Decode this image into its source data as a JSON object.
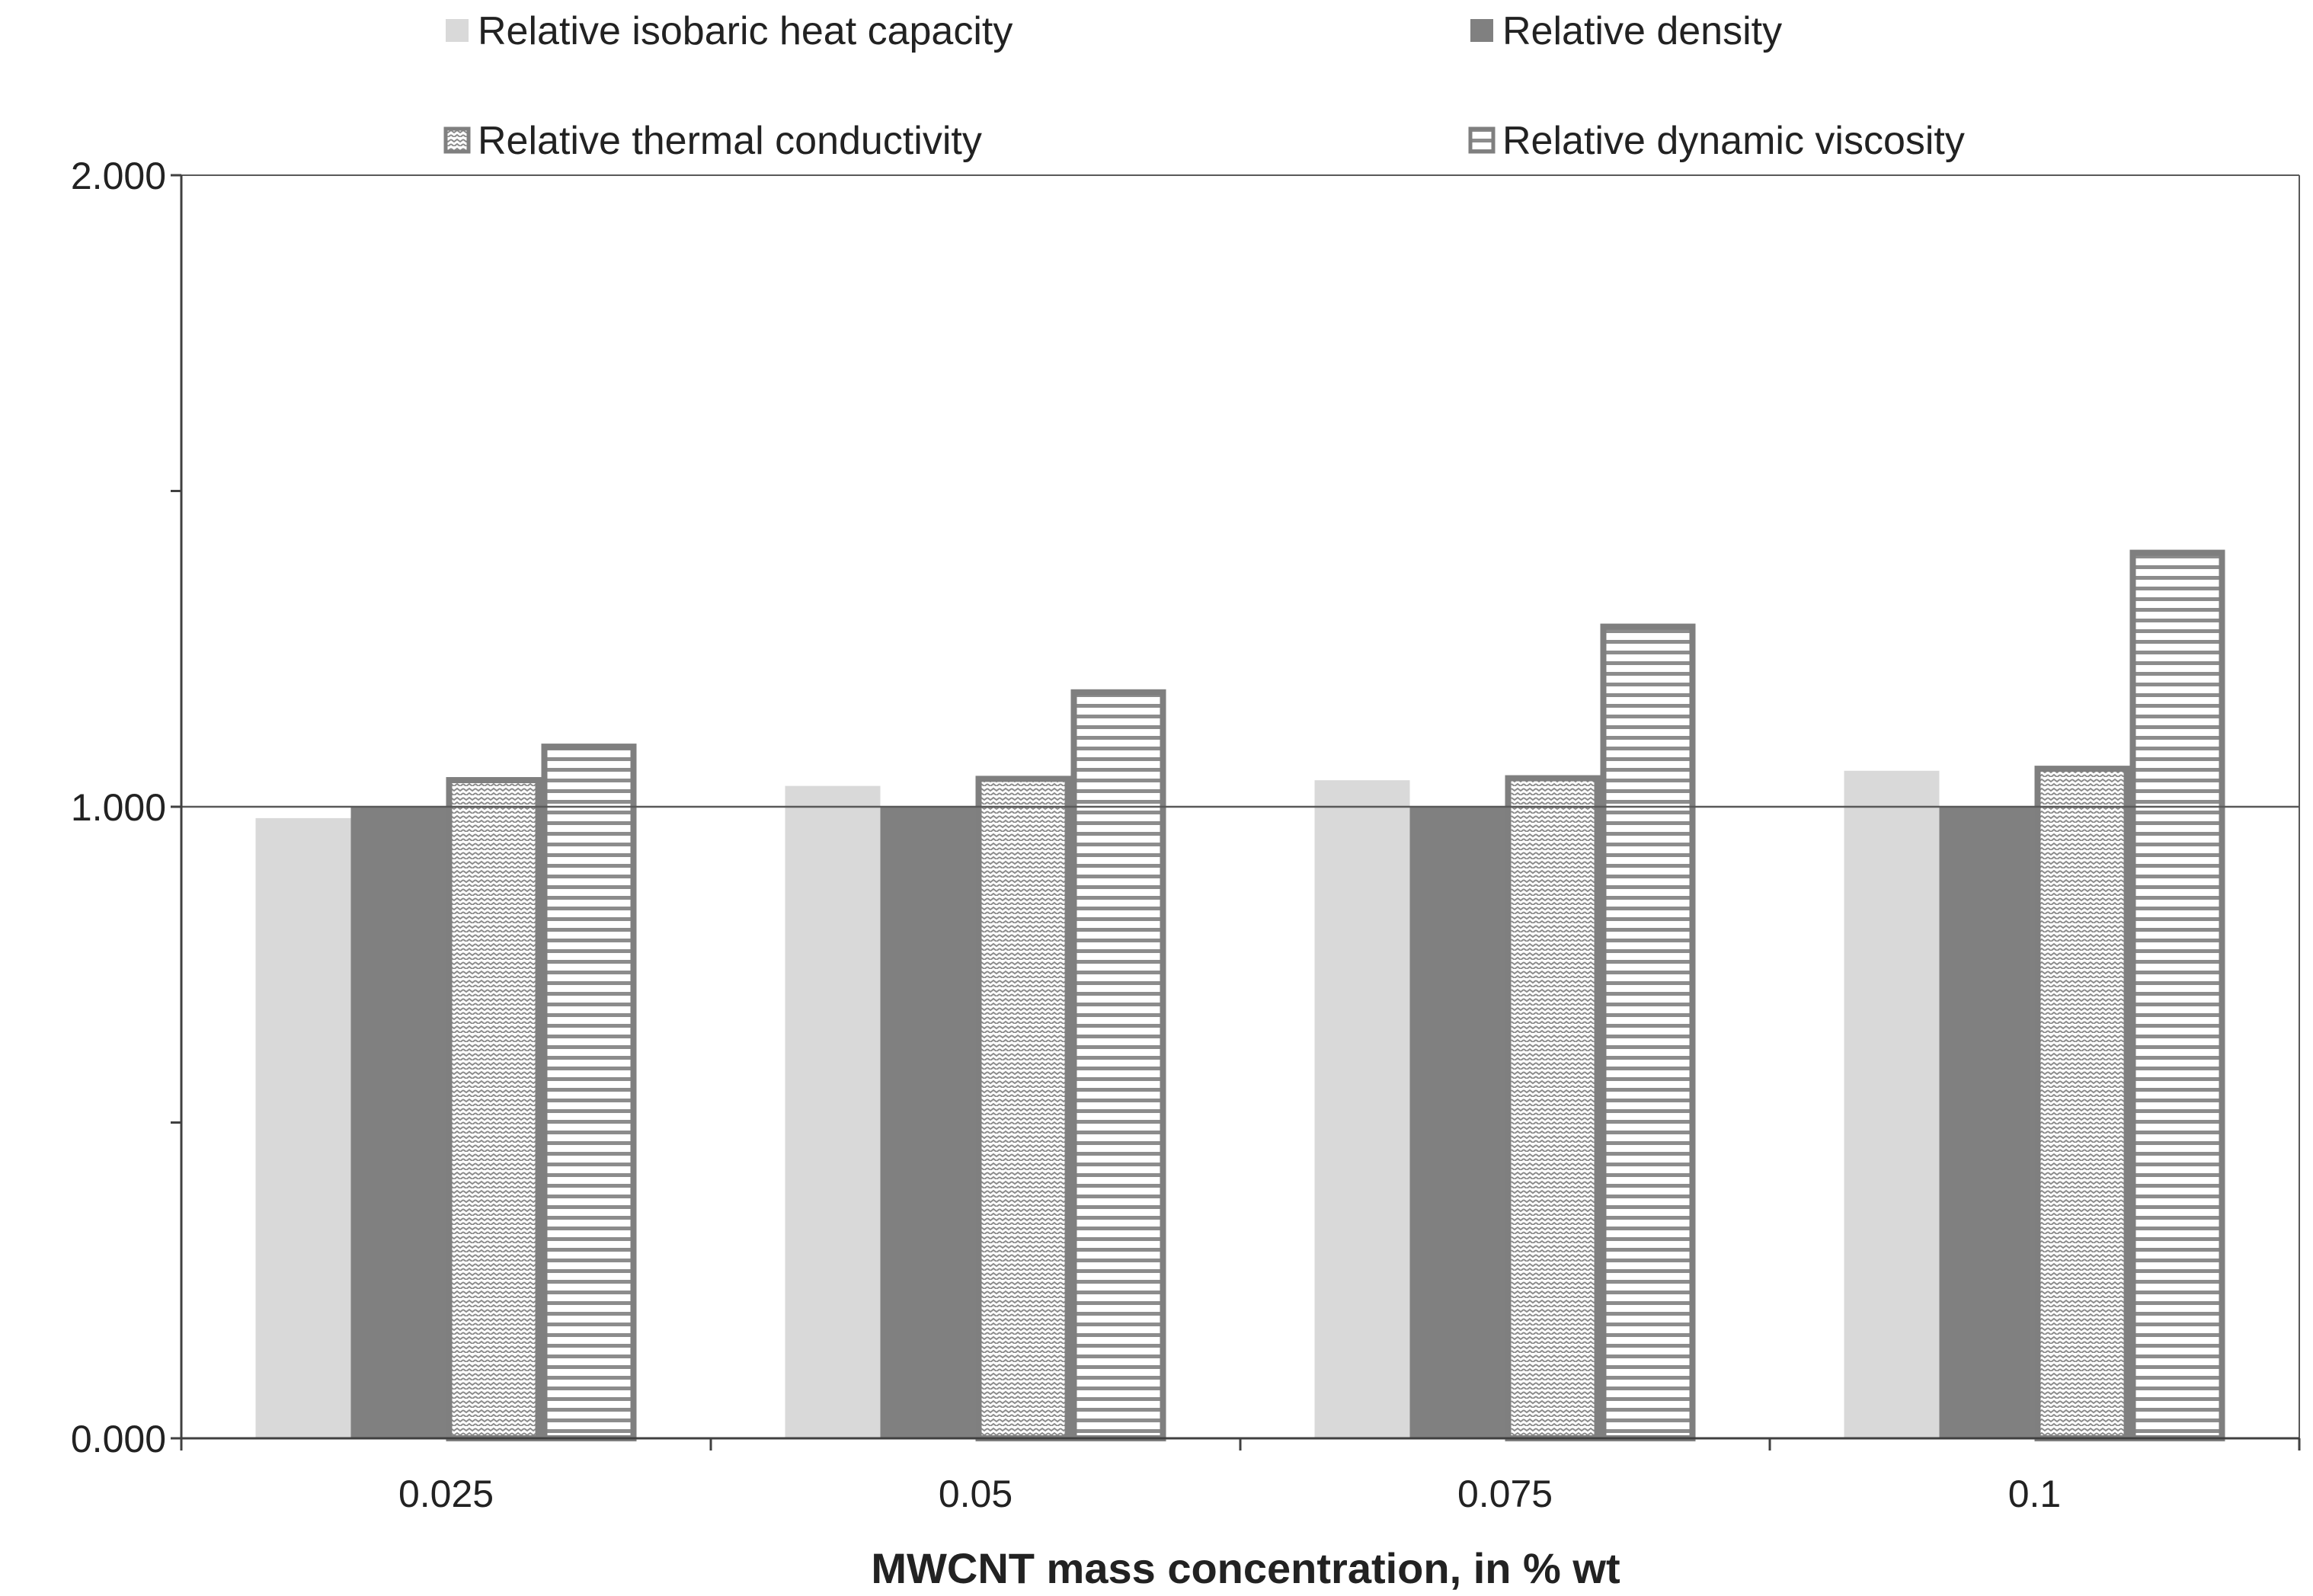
{
  "chart_data": {
    "type": "bar",
    "title": "",
    "xlabel": "MWCNT mass concentration, in % wt",
    "ylabel": "",
    "categories": [
      "0.025",
      "0.05",
      "0.075",
      "0.1"
    ],
    "series": [
      {
        "name": "Relative isobaric heat capacity",
        "values": [
          0.982,
          1.033,
          1.042,
          1.057
        ],
        "fill": "#d9d9d9",
        "pattern": "solid",
        "stroke": "none"
      },
      {
        "name": "Relative density",
        "values": [
          1.0,
          1.0,
          1.0,
          1.0
        ],
        "fill": "#808080",
        "pattern": "solid",
        "stroke": "none"
      },
      {
        "name": "Relative thermal conductivity",
        "values": [
          1.047,
          1.049,
          1.05,
          1.065
        ],
        "fill": "#ffffff",
        "pattern": "zigzag",
        "stroke": "#7f7f7f"
      },
      {
        "name": "Relative dynamic viscosity",
        "values": [
          1.1,
          1.186,
          1.29,
          1.407
        ],
        "fill": "#ffffff",
        "pattern": "horizontal",
        "stroke": "#7f7f7f"
      }
    ],
    "ylim": [
      0,
      2
    ],
    "yticks": [
      0.0,
      1.0,
      2.0
    ],
    "ytick_labels": [
      "0.000",
      "1.000",
      "2.000"
    ],
    "minor_yticks": [
      0.5,
      1.5
    ],
    "reference_line": 1.0,
    "legend": "top",
    "grid": false
  }
}
